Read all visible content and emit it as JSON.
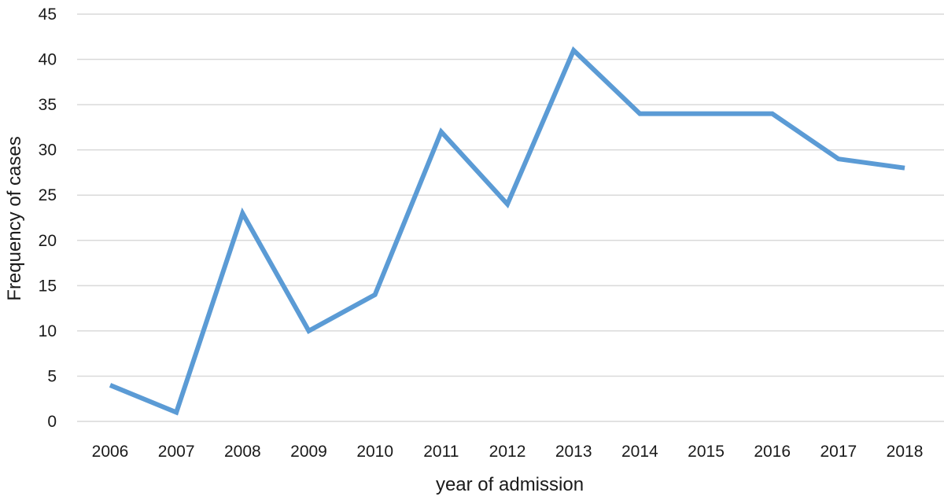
{
  "chart_data": {
    "type": "line",
    "title": "",
    "xlabel": "year of admission",
    "ylabel": "Frequency of cases",
    "categories": [
      "2006",
      "2007",
      "2008",
      "2009",
      "2010",
      "2011",
      "2012",
      "2013",
      "2014",
      "2015",
      "2016",
      "2017",
      "2018"
    ],
    "series": [
      {
        "values": [
          4,
          1,
          23,
          10,
          14,
          32,
          24,
          41,
          34,
          34,
          34,
          29,
          28
        ]
      }
    ],
    "ylim": [
      0,
      45
    ],
    "yticks": [
      "0",
      "5",
      "10",
      "15",
      "20",
      "25",
      "30",
      "35",
      "40",
      "45"
    ],
    "grid": true,
    "legend": "none",
    "colors": {
      "line": "#5b9bd5",
      "grid": "#d9d9d9"
    }
  }
}
